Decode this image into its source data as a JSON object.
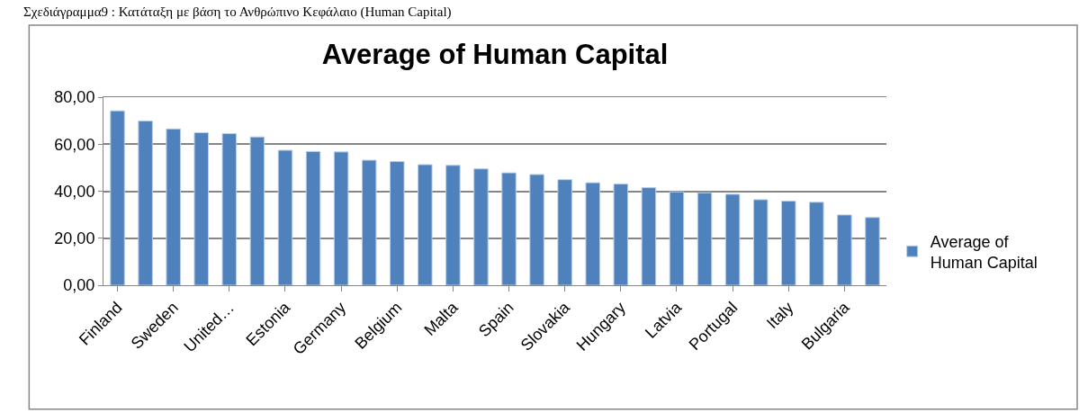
{
  "chart_data": {
    "type": "bar",
    "title": "Average of Human Capital",
    "annotations": [
      "Σχεδιάγραμμα9 : Κατάταξη με βάση το Ανθρώπινο Κεφάλαιο (Human Capital)"
    ],
    "categories": [
      "Finland",
      null,
      "Sweden",
      null,
      "United…",
      null,
      "Estonia",
      null,
      "Germany",
      null,
      "Belgium",
      null,
      "Malta",
      null,
      "Spain",
      null,
      "Slovakia",
      null,
      "Hungary",
      null,
      "Latvia",
      null,
      "Portugal",
      null,
      "Italy",
      null,
      "Bulgaria",
      null
    ],
    "series": [
      {
        "name": "Average of Human Capital",
        "color": "#4f81bd",
        "values": [
          74.2,
          69.9,
          66.5,
          64.9,
          64.5,
          63.1,
          57.4,
          56.9,
          56.7,
          53.2,
          52.6,
          51.3,
          51.0,
          49.5,
          47.8,
          47.1,
          44.9,
          43.6,
          43.1,
          41.5,
          39.7,
          39.3,
          38.7,
          36.4,
          35.8,
          35.3,
          29.9,
          28.8
        ]
      }
    ],
    "ylim": [
      0,
      80
    ],
    "yticks": [
      {
        "value": 0,
        "label": "0,00"
      },
      {
        "value": 20,
        "label": "20,00"
      },
      {
        "value": 40,
        "label": "40,00"
      },
      {
        "value": 60,
        "label": "60,00"
      },
      {
        "value": 80,
        "label": "80,00"
      }
    ],
    "grid": "y",
    "legend": "right"
  }
}
